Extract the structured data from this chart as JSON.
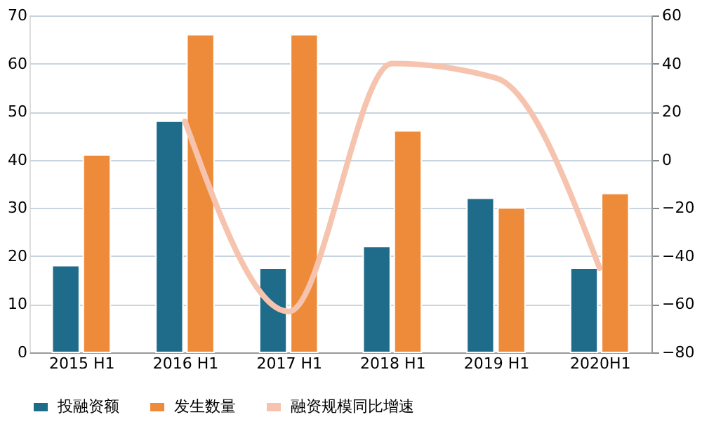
{
  "chart_data": {
    "type": "bar",
    "categories": [
      "2015 H1",
      "2016 H1",
      "2017 H1",
      "2018 H1",
      "2019 H1",
      "2020H1"
    ],
    "series": [
      {
        "name": "投融资额",
        "color": "#1f6b8a",
        "values": [
          18,
          48,
          17.5,
          22,
          32,
          17.5
        ]
      },
      {
        "name": "发生数量",
        "color": "#ed8b3a",
        "values": [
          41,
          66,
          66,
          46,
          30,
          33
        ]
      },
      {
        "name": "融资规模同比增速",
        "type": "line",
        "axis": "y2",
        "color": "#f6c4ae",
        "values": [
          null,
          16,
          -63,
          40,
          34,
          -45
        ]
      }
    ],
    "ylim": [
      0,
      70
    ],
    "yticks": [
      0,
      10,
      20,
      30,
      40,
      50,
      60,
      70
    ],
    "y2lim": [
      -80,
      60
    ],
    "y2ticks": [
      -80,
      -60,
      -40,
      -20,
      0,
      20,
      40,
      60
    ],
    "grid": "y",
    "legend": "bottom"
  }
}
